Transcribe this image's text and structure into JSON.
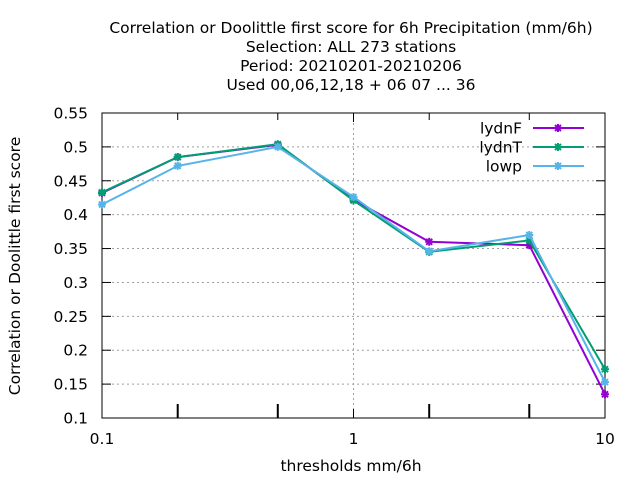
{
  "chart_data": {
    "type": "line",
    "title": [
      "Correlation or Doolittle first score  for 6h Precipitation (mm/6h)",
      "Selection: ALL    273 stations",
      "Period: 20210201-20210206",
      "Used  00,06,12,18 + 06 07 ... 36"
    ],
    "xlabel": "thresholds mm/6h",
    "ylabel": "Correlation or Doolittle first score",
    "x_scale": "log",
    "xlim": [
      0.1,
      10
    ],
    "ylim": [
      0.1,
      0.55
    ],
    "x_ticks": [
      {
        "value": 0.1,
        "label": "0.1"
      },
      {
        "value": 1,
        "label": "1"
      },
      {
        "value": 10,
        "label": "10"
      }
    ],
    "x_minor_ticks": [
      0.2,
      0.5,
      2,
      5
    ],
    "y_ticks": [
      {
        "value": 0.1,
        "label": "0.1"
      },
      {
        "value": 0.15,
        "label": "0.15"
      },
      {
        "value": 0.2,
        "label": "0.2"
      },
      {
        "value": 0.25,
        "label": "0.25"
      },
      {
        "value": 0.3,
        "label": "0.3"
      },
      {
        "value": 0.35,
        "label": "0.35"
      },
      {
        "value": 0.4,
        "label": "0.4"
      },
      {
        "value": 0.45,
        "label": "0.45"
      },
      {
        "value": 0.5,
        "label": "0.5"
      },
      {
        "value": 0.55,
        "label": "0.55"
      }
    ],
    "grid": true,
    "legend_position": "top-right",
    "x": [
      0.1,
      0.2,
      0.5,
      1,
      2,
      5,
      10
    ],
    "series": [
      {
        "name": "lydnF",
        "color": "#9400d3",
        "values": [
          0.432,
          0.485,
          0.503,
          0.422,
          0.36,
          0.355,
          0.135
        ]
      },
      {
        "name": "lydnT",
        "color": "#009e73",
        "values": [
          0.433,
          0.485,
          0.504,
          0.421,
          0.345,
          0.362,
          0.172
        ]
      },
      {
        "name": "lowp",
        "color": "#56b4e9",
        "values": [
          0.415,
          0.472,
          0.5,
          0.426,
          0.346,
          0.37,
          0.153
        ]
      }
    ]
  }
}
